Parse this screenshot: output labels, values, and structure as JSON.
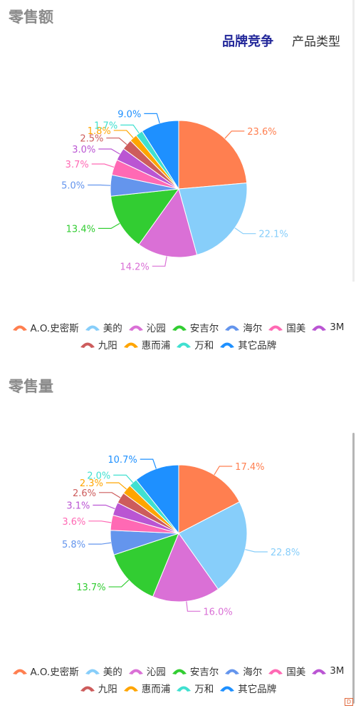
{
  "tabs": [
    {
      "label": "品牌竞争",
      "active": true
    },
    {
      "label": "产品类型",
      "active": false
    }
  ],
  "legend_rows": [
    [
      "A.O.史密斯",
      "美的",
      "沁园",
      "安吉尔",
      "海尔",
      "国美",
      "3M"
    ],
    [
      "九阳",
      "惠而浦",
      "万和",
      "其它品牌"
    ]
  ],
  "watermark": "D",
  "chart_data": [
    {
      "type": "pie",
      "title": "零售额",
      "categories": [
        "A.O.史密斯",
        "美的",
        "沁园",
        "安吉尔",
        "海尔",
        "国美",
        "3M",
        "九阳",
        "惠而浦",
        "万和",
        "其它品牌"
      ],
      "values": [
        23.6,
        22.1,
        14.2,
        13.4,
        5.0,
        3.7,
        3.0,
        2.5,
        1.8,
        1.7,
        9.0
      ],
      "labels": [
        "23.6%",
        "22.1%",
        "14.2%",
        "13.4%",
        "5.0%",
        "3.7%",
        "3.0%",
        "2.5%",
        "1.8%",
        "1.7%",
        "9.0%"
      ],
      "colors": [
        "#ff7f50",
        "#87cefa",
        "#da70d6",
        "#32cd32",
        "#6495ed",
        "#ff69b4",
        "#ba55d3",
        "#cd5c5c",
        "#ffa500",
        "#40e0d0",
        "#1e90ff"
      ],
      "legend_position": "bottom"
    },
    {
      "type": "pie",
      "title": "零售量",
      "categories": [
        "A.O.史密斯",
        "美的",
        "沁园",
        "安吉尔",
        "海尔",
        "国美",
        "3M",
        "九阳",
        "惠而浦",
        "万和",
        "其它品牌"
      ],
      "values": [
        17.4,
        22.8,
        16.0,
        13.7,
        5.8,
        3.6,
        3.1,
        2.6,
        2.3,
        2.0,
        10.7
      ],
      "labels": [
        "17.4%",
        "22.8%",
        "16.0%",
        "13.7%",
        "5.8%",
        "3.6%",
        "3.1%",
        "2.6%",
        "2.3%",
        "2.0%",
        "10.7%"
      ],
      "colors": [
        "#ff7f50",
        "#87cefa",
        "#da70d6",
        "#32cd32",
        "#6495ed",
        "#ff69b4",
        "#ba55d3",
        "#cd5c5c",
        "#ffa500",
        "#40e0d0",
        "#1e90ff"
      ],
      "legend_position": "bottom"
    }
  ]
}
